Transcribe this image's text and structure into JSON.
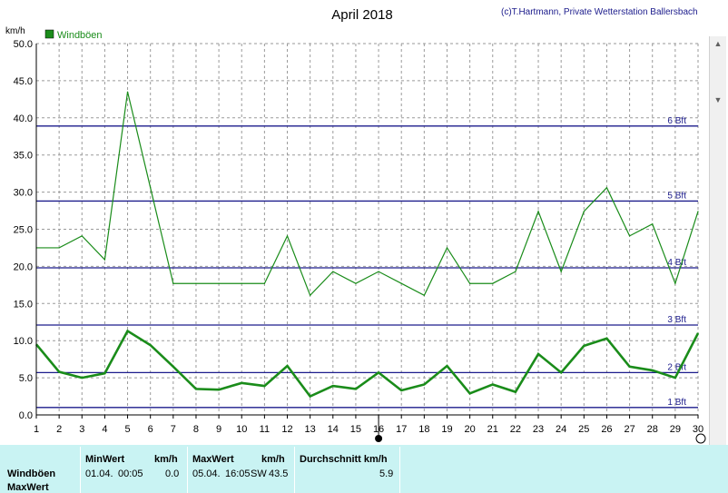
{
  "chart_data": {
    "type": "line",
    "title": "April 2018",
    "credit": "(c)T.Hartmann, Private Wetterstation Ballersbach",
    "ylabel": "km/h",
    "ylim": [
      0,
      50
    ],
    "yticks": [
      "0.0",
      "5.0",
      "10.0",
      "15.0",
      "20.0",
      "25.0",
      "30.0",
      "35.0",
      "40.0",
      "45.0",
      "50.0"
    ],
    "x": [
      1,
      2,
      3,
      4,
      5,
      6,
      7,
      8,
      9,
      10,
      11,
      12,
      13,
      14,
      15,
      16,
      17,
      18,
      19,
      20,
      21,
      22,
      23,
      24,
      25,
      26,
      27,
      28,
      29,
      30
    ],
    "legend": [
      {
        "label": "Windböen",
        "color": "#1a8c1a"
      }
    ],
    "series": [
      {
        "name": "Windböen",
        "color": "#1a8c1a",
        "values": [
          22.5,
          22.5,
          24.1,
          20.9,
          43.5,
          30.6,
          17.7,
          17.7,
          17.7,
          17.7,
          17.7,
          24.1,
          16.1,
          19.3,
          17.7,
          19.3,
          17.7,
          16.1,
          22.5,
          17.7,
          17.7,
          19.3,
          27.4,
          19.3,
          27.4,
          30.6,
          24.1,
          25.7,
          17.7,
          27.4
        ]
      },
      {
        "color": "#1a8c1a",
        "values": [
          9.5,
          5.8,
          5.0,
          5.6,
          11.3,
          9.4,
          6.5,
          3.5,
          3.4,
          4.3,
          3.9,
          6.6,
          2.5,
          3.9,
          3.5,
          5.7,
          3.3,
          4.1,
          6.6,
          2.9,
          4.1,
          3.1,
          8.2,
          5.7,
          9.3,
          10.3,
          6.5,
          6.0,
          5.0,
          11.0
        ]
      }
    ],
    "beaufort": [
      {
        "label": "1 Bft",
        "value": 1.0
      },
      {
        "label": "2 Bft",
        "value": 5.7
      },
      {
        "label": "3 Bft",
        "value": 12.1
      },
      {
        "label": "4 Bft",
        "value": 19.8
      },
      {
        "label": "5 Bft",
        "value": 28.8
      },
      {
        "label": "6 Bft",
        "value": 38.9
      }
    ],
    "grid": true,
    "legend_position": "top-left",
    "beaufort_color": "#1c1c8c"
  },
  "footer": {
    "row_label_1": "Windböen",
    "row_label_2": "MaxWert",
    "min_header": "MinWert",
    "min_unit": "km/h",
    "min_date": "01.04.",
    "min_time": "00:05",
    "min_value": "0.0",
    "max_header": "MaxWert",
    "max_unit": "km/h",
    "max_date": "05.04.",
    "max_time": "16:05",
    "max_dir": "SW",
    "max_value": "43.5",
    "avg_header": "Durchschnitt km/h",
    "avg_value": "5.9"
  }
}
